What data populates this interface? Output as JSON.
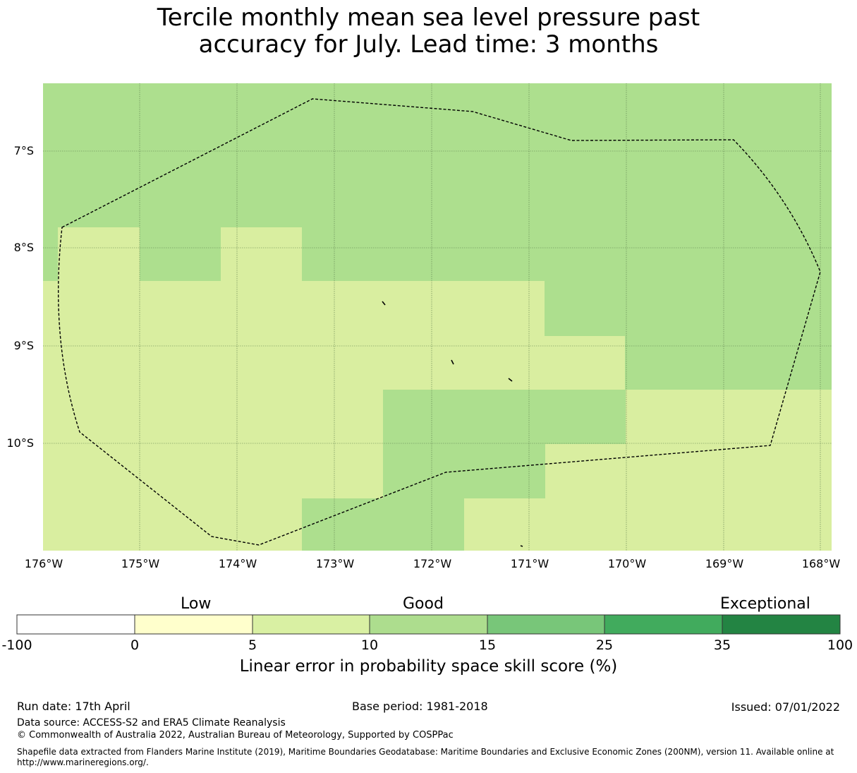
{
  "title_lines": [
    "Tercile monthly mean sea level pressure past",
    "accuracy for July. Lead time: 3 months"
  ],
  "map": {
    "lat_labels": [
      "7°S",
      "8°S",
      "9°S",
      "10°S"
    ],
    "lon_labels": [
      "176°W",
      "175°W",
      "174°W",
      "173°W",
      "172°W",
      "171°W",
      "170°W",
      "169°W",
      "168°W"
    ],
    "boundary_style": "dashed EEZ outline",
    "colors": {
      "cat_5_10": "#d9eea0",
      "cat_10_15": "#addf8e"
    }
  },
  "colorbar": {
    "categories": [
      "Low",
      "Good",
      "Exceptional"
    ],
    "ticks": [
      "-100",
      "0",
      "5",
      "10",
      "15",
      "25",
      "35",
      "100"
    ],
    "colors": [
      "#ffffff",
      "#ffffcc",
      "#d9f0a3",
      "#addd8e",
      "#78c679",
      "#41ab5d",
      "#238443"
    ],
    "label": "Linear error in probability space skill score (%)"
  },
  "footer": {
    "run_date": "Run date: 17th April",
    "base_period": "Base period: 1981-2018",
    "issued": "Issued: 07/01/2022",
    "data_source": "Data source: ACCESS-S2 and ERA5 Climate Reanalysis",
    "copyright": "© Commonwealth of Australia 2022, Australian Bureau of Meteorology, Supported by COSPPac",
    "shapefile_note": "Shapefile data extracted from Flanders Marine Institute (2019), Maritime Boundaries Geodatabase: Maritime Boundaries and Exclusive Economic Zones (200NM), version 11. Available online at http://www.marineregions.org/."
  }
}
